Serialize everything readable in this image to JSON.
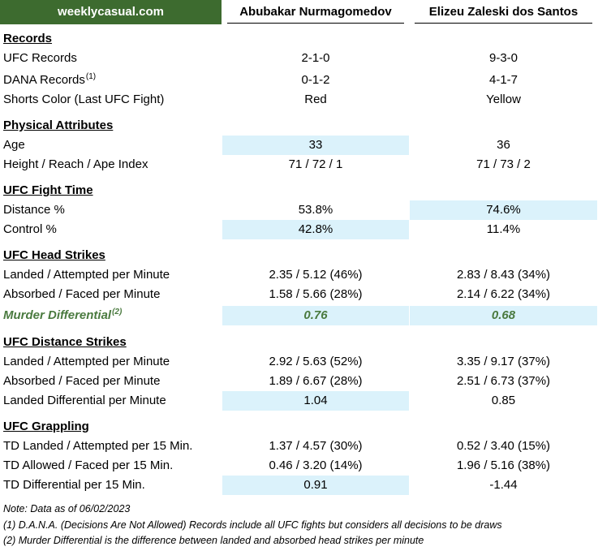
{
  "header": {
    "site": "weeklycasual.com",
    "fighter1": "Abubakar Nurmagomedov",
    "fighter2": "Elizeu Zaleski dos Santos"
  },
  "sections": {
    "records": {
      "title": "Records",
      "ufc_records": {
        "label": "UFC Records",
        "v1": "2-1-0",
        "v2": "9-3-0"
      },
      "dana_records": {
        "label": "DANA Records",
        "sup": "(1)",
        "v1": "0-1-2",
        "v2": "4-1-7"
      },
      "shorts_color": {
        "label": "Shorts Color (Last UFC Fight)",
        "v1": "Red",
        "v2": "Yellow"
      }
    },
    "physical": {
      "title": "Physical Attributes",
      "age": {
        "label": "Age",
        "v1": "33",
        "v2": "36"
      },
      "height_reach": {
        "label": "Height / Reach / Ape Index",
        "v1": "71 / 72 / 1",
        "v2": "71 / 73 / 2"
      }
    },
    "fight_time": {
      "title": "UFC Fight Time",
      "distance": {
        "label": "Distance %",
        "v1": "53.8%",
        "v2": "74.6%"
      },
      "control": {
        "label": "Control %",
        "v1": "42.8%",
        "v2": "11.4%"
      }
    },
    "head_strikes": {
      "title": "UFC Head Strikes",
      "landed": {
        "label": "Landed / Attempted per Minute",
        "v1": "2.35 / 5.12 (46%)",
        "v2": "2.83 / 8.43 (34%)"
      },
      "absorbed": {
        "label": "Absorbed / Faced per Minute",
        "v1": "1.58 / 5.66 (28%)",
        "v2": "2.14 / 6.22 (34%)"
      },
      "murder": {
        "label": "Murder Differential",
        "sup": "(2)",
        "v1": "0.76",
        "v2": "0.68"
      }
    },
    "distance_strikes": {
      "title": "UFC Distance Strikes",
      "landed": {
        "label": "Landed / Attempted per Minute",
        "v1": "2.92 / 5.63 (52%)",
        "v2": "3.35 / 9.17 (37%)"
      },
      "absorbed": {
        "label": "Absorbed / Faced per Minute",
        "v1": "1.89 / 6.67 (28%)",
        "v2": "2.51 / 6.73 (37%)"
      },
      "differential": {
        "label": "Landed Differential per Minute",
        "v1": "1.04",
        "v2": "0.85"
      }
    },
    "grappling": {
      "title": "UFC Grappling",
      "td_landed": {
        "label": "TD Landed / Attempted per 15 Min.",
        "v1": "1.37 / 4.57 (30%)",
        "v2": "0.52 / 3.40 (15%)"
      },
      "td_allowed": {
        "label": "TD Allowed / Faced per 15 Min.",
        "v1": "0.46 / 3.20 (14%)",
        "v2": "1.96 / 5.16 (38%)"
      },
      "td_diff": {
        "label": "TD Differential per 15 Min.",
        "v1": "0.91",
        "v2": "-1.44"
      }
    }
  },
  "notes": {
    "date": "Note: Data as of 06/02/2023",
    "n1": "(1) D.A.N.A. (Decisions Are Not Allowed) Records include all UFC fights but considers all decisions to be draws",
    "n2": "(2) Murder Differential is the difference between landed and absorbed head strikes per minute"
  },
  "colors": {
    "brand_bg": "#3d6b2f",
    "highlight": "#dbf2fb",
    "murder_text": "#4a7a3f"
  }
}
